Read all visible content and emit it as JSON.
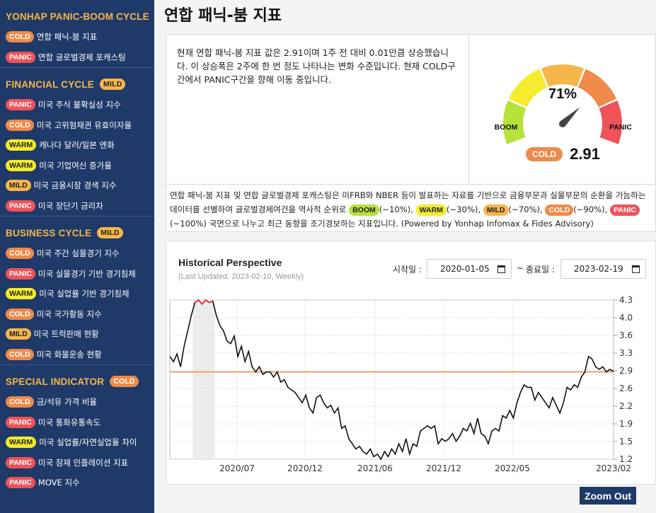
{
  "sidebar": {
    "sections": [
      {
        "title": "YONHAP PANIC-BOOM CYCLE",
        "status": null,
        "items": [
          {
            "status": "COLD",
            "label": "연합 패닉-붐 지표"
          },
          {
            "status": "PANIC",
            "label": "연합 글로벌경제 포캐스팅"
          }
        ]
      },
      {
        "title": "FINANCIAL CYCLE",
        "status": "MILD",
        "items": [
          {
            "status": "PANIC",
            "label": "미국 주식 불확실성 지수"
          },
          {
            "status": "COLD",
            "label": "미국 고위험채권 유효이자율"
          },
          {
            "status": "WARM",
            "label": "캐나다 달러/일본 엔화"
          },
          {
            "status": "WARM",
            "label": "미국 기업여신 증가율"
          },
          {
            "status": "MILD",
            "label": "미국 금융시장 경색 지수"
          },
          {
            "status": "PANIC",
            "label": "미국 장단기 금리차"
          }
        ]
      },
      {
        "title": "BUSINESS CYCLE",
        "status": "MILD",
        "items": [
          {
            "status": "COLD",
            "label": "미국 주간 실물경기 지수"
          },
          {
            "status": "PANIC",
            "label": "미국 실물경기 기반 경기침체"
          },
          {
            "status": "WARM",
            "label": "미국 실업률 기반 경기침체"
          },
          {
            "status": "COLD",
            "label": "미국 국가활동 지수"
          },
          {
            "status": "MILD",
            "label": "미국 트럭판매 현황"
          },
          {
            "status": "COLD",
            "label": "미국 화물운송 현황"
          }
        ]
      },
      {
        "title": "SPECIAL INDICATOR",
        "status": "COLD",
        "items": [
          {
            "status": "COLD",
            "label": "금/석유 가격 비율"
          },
          {
            "status": "PANIC",
            "label": "미국 통화유통속도"
          },
          {
            "status": "WARM",
            "label": "미국 실업률/자연실업율 차이"
          },
          {
            "status": "PANIC",
            "label": "미국 잠재 인플레이션 지표"
          },
          {
            "status": "PANIC",
            "label": "MOVE 지수"
          }
        ]
      }
    ]
  },
  "header": {
    "title": "연합 패닉-붐 지표"
  },
  "summary": {
    "text": "현재 연합 패닉-붐 지표 값은 2.91이며 1주 전 대비 0.01만큼 상승했습니다. 이 상승폭은 2주에 한 번 정도 나타나는 변화 수준입니다. 현재 COLD구간에서 PANIC구간을 향해 이동 중입니다."
  },
  "gauge": {
    "percent": 0.71,
    "percent_label": "71%",
    "left_label": "BOOM",
    "right_label": "PANIC",
    "status": "COLD",
    "value": "2.91",
    "colors": [
      "#b6e23a",
      "#f4ec2c",
      "#f6b64b",
      "#ef8a4a",
      "#f0525a"
    ]
  },
  "description": {
    "part1": "연합 패닉-붐 지표 및 연합 글로벌경제 포캐스팅은 미FRB와 NBER 등이 발표하는 자료를 기반으로 금융부문과 실물부문의 순환을 가늠하는 데이터를 선별하여 글로벌경제여건을 역사적 순위로",
    "badges": [
      {
        "status": "BOOM",
        "range": "(~10%),"
      },
      {
        "status": "WARM",
        "range": "(~30%),"
      },
      {
        "status": "MILD",
        "range": "(~70%),"
      },
      {
        "status": "COLD",
        "range": "(~90%),"
      },
      {
        "status": "PANIC",
        "range": "(~100%)"
      }
    ],
    "part2": "국면으로 나누고 최근 동향을 조기경보하는 지표입니다. (Powered by Yonhap Infomax & Fides Advisory)"
  },
  "chart_panel": {
    "title": "Historical Perspective",
    "subtitle": "(Last Updated, 2023-02-10, Weekly)",
    "start_label": "시작일 :",
    "start_value": "2020-01-05",
    "tilde": "~",
    "end_label": "종료일 :",
    "end_value": "2023-02-19",
    "zoom_label": "Zoom Out"
  },
  "chart_data": {
    "type": "line",
    "x_ticks": [
      "2020/07",
      "2020/12",
      "2021/06",
      "2021/12",
      "2022/05",
      "2023/02"
    ],
    "y_ticks": [
      "4.3",
      "4.0",
      "3.6",
      "3.3",
      "2.9",
      "2.6",
      "2.2",
      "1.9",
      "1.5",
      "1.2"
    ],
    "ylim": [
      1.2,
      4.3
    ],
    "reference_line": 2.9,
    "line_color": "#111111",
    "high_color": "#e8403e",
    "reference_color": "#ef8a4a",
    "values": [
      3.2,
      3.1,
      3.25,
      3.0,
      3.4,
      3.7,
      4.0,
      4.25,
      4.3,
      4.22,
      4.3,
      4.25,
      4.28,
      4.0,
      3.8,
      3.7,
      3.5,
      3.45,
      3.6,
      3.2,
      3.4,
      3.1,
      3.3,
      3.0,
      2.9,
      3.0,
      2.85,
      2.9,
      2.9,
      2.8,
      2.9,
      2.7,
      2.75,
      2.6,
      2.55,
      2.5,
      2.4,
      2.3,
      2.45,
      2.2,
      2.1,
      2.4,
      2.45,
      2.3,
      2.2,
      2.25,
      2.1,
      2.2,
      1.8,
      1.85,
      1.6,
      1.5,
      1.4,
      1.45,
      1.35,
      1.3,
      1.4,
      1.25,
      1.3,
      1.2,
      1.35,
      1.25,
      1.4,
      1.3,
      1.5,
      1.35,
      1.6,
      1.3,
      1.5,
      1.45,
      1.75,
      1.8,
      1.85,
      1.8,
      1.85,
      1.5,
      1.6,
      1.55,
      1.6,
      1.7,
      1.55,
      1.65,
      1.8,
      1.75,
      1.9,
      1.7,
      2.0,
      1.7,
      1.65,
      1.5,
      1.75,
      1.8,
      1.75,
      2.05,
      2.0,
      2.15,
      2.0,
      2.3,
      2.5,
      2.65,
      2.6,
      2.6,
      2.35,
      2.5,
      2.4,
      2.3,
      2.2,
      2.4,
      2.25,
      2.1,
      2.3,
      2.6,
      2.55,
      2.65,
      2.6,
      2.8,
      2.9,
      3.2,
      3.15,
      3.0,
      2.95,
      3.0,
      2.9,
      2.95,
      2.91
    ]
  }
}
